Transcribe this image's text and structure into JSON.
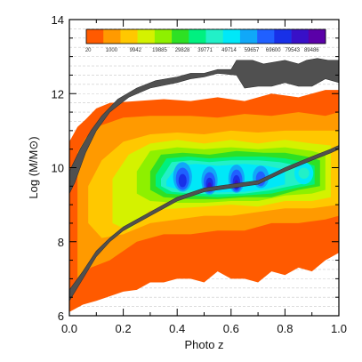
{
  "chart_data": {
    "type": "heatmap",
    "xlabel": "Photo z",
    "ylabel": "Log (M/M⊙)",
    "xlim": [
      0.0,
      1.0
    ],
    "ylim": [
      6,
      14
    ],
    "x_ticks": [
      "0.0",
      "0.2",
      "0.4",
      "0.6",
      "0.8",
      "1.0"
    ],
    "y_ticks": [
      "6",
      "8",
      "10",
      "12",
      "14"
    ],
    "grid": "horizontal dashed",
    "colorbar": {
      "placement": "top",
      "colors": [
        "#ff5a00",
        "#ff9a00",
        "#ffc800",
        "#d4f200",
        "#8ef000",
        "#2ee024",
        "#00f080",
        "#22f0c8",
        "#00e8f8",
        "#10a8f8",
        "#2060ff",
        "#1830e8",
        "#3810c8",
        "#5a00a8"
      ],
      "labels": [
        "20",
        "1000",
        "9942",
        "19885",
        "29828",
        "39771",
        "49714",
        "59657",
        "69600",
        "79543",
        "89486"
      ]
    },
    "contours": [
      {
        "level": 1,
        "color": "#ff5a00",
        "upper": [
          [
            0.0,
            10.7
          ],
          [
            0.03,
            11.1
          ],
          [
            0.06,
            11.3
          ],
          [
            0.1,
            11.6
          ],
          [
            0.15,
            11.75
          ],
          [
            0.25,
            11.8
          ],
          [
            0.35,
            11.85
          ],
          [
            0.45,
            11.8
          ],
          [
            0.55,
            11.9
          ],
          [
            0.65,
            11.8
          ],
          [
            0.75,
            12.0
          ],
          [
            0.85,
            11.9
          ],
          [
            0.95,
            12.1
          ],
          [
            1.0,
            12.1
          ]
        ],
        "lower": [
          [
            1.0,
            7.7
          ],
          [
            0.95,
            7.5
          ],
          [
            0.9,
            7.2
          ],
          [
            0.85,
            7.3
          ],
          [
            0.8,
            7.1
          ],
          [
            0.75,
            7.2
          ],
          [
            0.7,
            6.9
          ],
          [
            0.65,
            7.0
          ],
          [
            0.6,
            7.0
          ],
          [
            0.55,
            7.2
          ],
          [
            0.5,
            6.9
          ],
          [
            0.45,
            7.0
          ],
          [
            0.4,
            7.0
          ],
          [
            0.35,
            6.9
          ],
          [
            0.3,
            6.9
          ],
          [
            0.25,
            6.7
          ],
          [
            0.2,
            6.65
          ],
          [
            0.1,
            6.4
          ],
          [
            0.05,
            6.3
          ],
          [
            0.0,
            6.1
          ]
        ]
      },
      {
        "level": 2,
        "color": "#ff9a00",
        "upper": [
          [
            0.03,
            10.4
          ],
          [
            0.06,
            10.8
          ],
          [
            0.1,
            11.1
          ],
          [
            0.2,
            11.35
          ],
          [
            0.3,
            11.4
          ],
          [
            0.45,
            11.4
          ],
          [
            0.55,
            11.35
          ],
          [
            0.65,
            11.45
          ],
          [
            0.75,
            11.4
          ],
          [
            0.85,
            11.5
          ],
          [
            0.95,
            11.4
          ],
          [
            1.0,
            11.5
          ]
        ],
        "lower": [
          [
            1.0,
            8.7
          ],
          [
            0.95,
            8.6
          ],
          [
            0.85,
            8.5
          ],
          [
            0.75,
            8.5
          ],
          [
            0.65,
            8.3
          ],
          [
            0.55,
            8.3
          ],
          [
            0.45,
            8.2
          ],
          [
            0.35,
            8.2
          ],
          [
            0.25,
            8.0
          ],
          [
            0.15,
            7.5
          ],
          [
            0.08,
            7.3
          ],
          [
            0.03,
            7.0
          ]
        ]
      },
      {
        "level": 3,
        "color": "#ffc800",
        "upper": [
          [
            0.07,
            9.5
          ],
          [
            0.12,
            10.2
          ],
          [
            0.2,
            10.7
          ],
          [
            0.3,
            10.9
          ],
          [
            0.4,
            10.95
          ],
          [
            0.5,
            10.9
          ],
          [
            0.6,
            11.0
          ],
          [
            0.7,
            10.95
          ],
          [
            0.8,
            11.0
          ],
          [
            0.9,
            11.0
          ],
          [
            1.0,
            11.0
          ]
        ],
        "lower": [
          [
            1.0,
            9.0
          ],
          [
            0.9,
            8.9
          ],
          [
            0.8,
            8.9
          ],
          [
            0.7,
            8.8
          ],
          [
            0.6,
            8.7
          ],
          [
            0.5,
            8.7
          ],
          [
            0.4,
            8.6
          ],
          [
            0.3,
            8.5
          ],
          [
            0.2,
            8.2
          ],
          [
            0.12,
            8.1
          ],
          [
            0.07,
            8.5
          ]
        ]
      },
      {
        "level": 4,
        "color": "#d4f200",
        "upper": [
          [
            0.16,
            9.7
          ],
          [
            0.22,
            10.35
          ],
          [
            0.3,
            10.65
          ],
          [
            0.4,
            10.75
          ],
          [
            0.5,
            10.65
          ],
          [
            0.6,
            10.75
          ],
          [
            0.7,
            10.65
          ],
          [
            0.8,
            10.75
          ],
          [
            0.9,
            10.65
          ],
          [
            0.97,
            10.6
          ]
        ],
        "lower": [
          [
            0.97,
            9.2
          ],
          [
            0.9,
            9.1
          ],
          [
            0.8,
            9.1
          ],
          [
            0.7,
            8.95
          ],
          [
            0.6,
            9.0
          ],
          [
            0.5,
            8.95
          ],
          [
            0.4,
            8.9
          ],
          [
            0.3,
            8.85
          ],
          [
            0.22,
            8.3
          ],
          [
            0.16,
            8.5
          ]
        ]
      },
      {
        "level": 5,
        "color": "#8ef000",
        "upper": [
          [
            0.25,
            9.9
          ],
          [
            0.3,
            10.45
          ],
          [
            0.4,
            10.55
          ],
          [
            0.5,
            10.5
          ],
          [
            0.6,
            10.55
          ],
          [
            0.7,
            10.5
          ],
          [
            0.8,
            10.55
          ],
          [
            0.9,
            10.45
          ],
          [
            0.95,
            10.35
          ]
        ],
        "lower": [
          [
            0.95,
            9.4
          ],
          [
            0.9,
            9.3
          ],
          [
            0.8,
            9.25
          ],
          [
            0.7,
            9.1
          ],
          [
            0.6,
            9.1
          ],
          [
            0.5,
            9.05
          ],
          [
            0.4,
            9.05
          ],
          [
            0.3,
            9.1
          ],
          [
            0.25,
            9.3
          ]
        ]
      },
      {
        "level": 6,
        "color": "#2ee024",
        "upper": [
          [
            0.3,
            9.9
          ],
          [
            0.34,
            10.35
          ],
          [
            0.42,
            10.4
          ],
          [
            0.52,
            10.35
          ],
          [
            0.62,
            10.45
          ],
          [
            0.72,
            10.4
          ],
          [
            0.8,
            10.4
          ],
          [
            0.88,
            10.3
          ],
          [
            0.93,
            10.2
          ]
        ],
        "lower": [
          [
            0.93,
            9.5
          ],
          [
            0.85,
            9.4
          ],
          [
            0.75,
            9.2
          ],
          [
            0.65,
            9.2
          ],
          [
            0.55,
            9.15
          ],
          [
            0.45,
            9.15
          ],
          [
            0.35,
            9.2
          ],
          [
            0.3,
            9.4
          ]
        ]
      },
      {
        "level": 7,
        "color": "#00f080",
        "upper": [
          [
            0.32,
            9.8
          ],
          [
            0.36,
            10.25
          ],
          [
            0.44,
            10.3
          ],
          [
            0.52,
            10.25
          ],
          [
            0.62,
            10.3
          ],
          [
            0.72,
            10.3
          ],
          [
            0.8,
            10.25
          ],
          [
            0.87,
            10.15
          ],
          [
            0.91,
            10.05
          ]
        ],
        "lower": [
          [
            0.91,
            9.55
          ],
          [
            0.84,
            9.45
          ],
          [
            0.75,
            9.3
          ],
          [
            0.65,
            9.25
          ],
          [
            0.55,
            9.2
          ],
          [
            0.45,
            9.25
          ],
          [
            0.36,
            9.3
          ],
          [
            0.32,
            9.5
          ]
        ]
      },
      {
        "level": 8,
        "color": "#22f0c8",
        "upper": [
          [
            0.34,
            9.7
          ],
          [
            0.38,
            10.15
          ],
          [
            0.45,
            10.2
          ],
          [
            0.52,
            10.15
          ],
          [
            0.6,
            10.2
          ],
          [
            0.7,
            10.2
          ],
          [
            0.78,
            10.15
          ],
          [
            0.85,
            10.05
          ],
          [
            0.89,
            9.95
          ]
        ],
        "lower": [
          [
            0.89,
            9.6
          ],
          [
            0.82,
            9.5
          ],
          [
            0.74,
            9.38
          ],
          [
            0.65,
            9.3
          ],
          [
            0.55,
            9.28
          ],
          [
            0.45,
            9.3
          ],
          [
            0.38,
            9.35
          ],
          [
            0.34,
            9.5
          ]
        ]
      },
      {
        "level": 9,
        "color": "#00e8f8",
        "upper": [
          [
            0.36,
            9.65
          ],
          [
            0.4,
            10.05
          ],
          [
            0.47,
            10.1
          ],
          [
            0.55,
            10.05
          ],
          [
            0.65,
            10.1
          ],
          [
            0.73,
            10.05
          ],
          [
            0.8,
            9.95
          ]
        ],
        "lower": [
          [
            0.8,
            9.55
          ],
          [
            0.73,
            9.42
          ],
          [
            0.65,
            9.35
          ],
          [
            0.55,
            9.33
          ],
          [
            0.47,
            9.38
          ],
          [
            0.4,
            9.42
          ],
          [
            0.36,
            9.5
          ]
        ]
      }
    ],
    "blobs": [
      {
        "cx": 0.42,
        "cy": 9.75,
        "rx": 0.035,
        "ry": 0.4,
        "color": "#10a8f8"
      },
      {
        "cx": 0.52,
        "cy": 9.65,
        "rx": 0.03,
        "ry": 0.38,
        "color": "#10a8f8"
      },
      {
        "cx": 0.62,
        "cy": 9.7,
        "rx": 0.03,
        "ry": 0.38,
        "color": "#10a8f8"
      },
      {
        "cx": 0.71,
        "cy": 9.75,
        "rx": 0.03,
        "ry": 0.3,
        "color": "#10a8f8"
      },
      {
        "cx": 0.42,
        "cy": 9.7,
        "rx": 0.025,
        "ry": 0.3,
        "color": "#2060ff"
      },
      {
        "cx": 0.52,
        "cy": 9.6,
        "rx": 0.022,
        "ry": 0.28,
        "color": "#2060ff"
      },
      {
        "cx": 0.62,
        "cy": 9.65,
        "rx": 0.022,
        "ry": 0.3,
        "color": "#2060ff"
      },
      {
        "cx": 0.71,
        "cy": 9.7,
        "rx": 0.018,
        "ry": 0.2,
        "color": "#2060ff"
      },
      {
        "cx": 0.42,
        "cy": 9.65,
        "rx": 0.015,
        "ry": 0.18,
        "color": "#1830e8"
      },
      {
        "cx": 0.52,
        "cy": 9.55,
        "rx": 0.014,
        "ry": 0.18,
        "color": "#1830e8"
      },
      {
        "cx": 0.62,
        "cy": 9.6,
        "rx": 0.014,
        "ry": 0.2,
        "color": "#1830e8"
      },
      {
        "cx": 0.52,
        "cy": 9.5,
        "rx": 0.008,
        "ry": 0.1,
        "color": "#3810c8"
      },
      {
        "cx": 0.62,
        "cy": 9.55,
        "rx": 0.008,
        "ry": 0.12,
        "color": "#3810c8"
      },
      {
        "cx": 0.87,
        "cy": 9.85,
        "rx": 0.035,
        "ry": 0.3,
        "color": "#00e8f8"
      },
      {
        "cx": 0.87,
        "cy": 9.85,
        "rx": 0.02,
        "ry": 0.15,
        "color": "#22f0c8"
      }
    ],
    "upper_band": {
      "color": "#505050",
      "upper": [
        [
          0.0,
          9.9
        ],
        [
          0.04,
          10.5
        ],
        [
          0.08,
          11.0
        ],
        [
          0.12,
          11.4
        ],
        [
          0.18,
          11.85
        ],
        [
          0.25,
          12.15
        ],
        [
          0.32,
          12.35
        ],
        [
          0.4,
          12.45
        ],
        [
          0.45,
          12.55
        ],
        [
          0.5,
          12.55
        ],
        [
          0.55,
          12.65
        ],
        [
          0.6,
          12.65
        ],
        [
          0.62,
          12.9
        ],
        [
          0.68,
          12.9
        ],
        [
          0.72,
          12.8
        ],
        [
          0.8,
          12.9
        ],
        [
          0.85,
          12.8
        ],
        [
          0.88,
          12.9
        ],
        [
          0.92,
          12.95
        ],
        [
          0.96,
          12.9
        ],
        [
          1.0,
          12.9
        ]
      ],
      "lower": [
        [
          1.0,
          12.3
        ],
        [
          0.95,
          12.4
        ],
        [
          0.9,
          12.2
        ],
        [
          0.85,
          12.2
        ],
        [
          0.8,
          12.3
        ],
        [
          0.75,
          12.2
        ],
        [
          0.7,
          12.2
        ],
        [
          0.65,
          12.15
        ],
        [
          0.62,
          12.5
        ],
        [
          0.55,
          12.55
        ],
        [
          0.5,
          12.45
        ],
        [
          0.45,
          12.4
        ],
        [
          0.4,
          12.3
        ],
        [
          0.3,
          12.15
        ],
        [
          0.22,
          11.9
        ],
        [
          0.15,
          11.5
        ],
        [
          0.1,
          11.0
        ],
        [
          0.06,
          10.4
        ],
        [
          0.02,
          9.6
        ],
        [
          0.0,
          9.3
        ]
      ]
    },
    "lower_band": {
      "color": "#505050",
      "upper": [
        [
          0.0,
          6.7
        ],
        [
          0.05,
          7.2
        ],
        [
          0.1,
          7.75
        ],
        [
          0.15,
          8.1
        ],
        [
          0.2,
          8.4
        ],
        [
          0.3,
          8.8
        ],
        [
          0.4,
          9.2
        ],
        [
          0.5,
          9.45
        ],
        [
          0.6,
          9.55
        ],
        [
          0.7,
          9.65
        ],
        [
          0.8,
          10.0
        ],
        [
          0.9,
          10.3
        ],
        [
          0.97,
          10.5
        ],
        [
          1.0,
          10.6
        ]
      ],
      "lower": [
        [
          1.0,
          10.5
        ],
        [
          0.97,
          10.4
        ],
        [
          0.9,
          10.2
        ],
        [
          0.8,
          9.9
        ],
        [
          0.7,
          9.55
        ],
        [
          0.6,
          9.45
        ],
        [
          0.5,
          9.35
        ],
        [
          0.4,
          9.1
        ],
        [
          0.3,
          8.7
        ],
        [
          0.2,
          8.3
        ],
        [
          0.15,
          8.0
        ],
        [
          0.1,
          7.6
        ],
        [
          0.05,
          7.0
        ],
        [
          0.0,
          6.4
        ]
      ]
    }
  }
}
